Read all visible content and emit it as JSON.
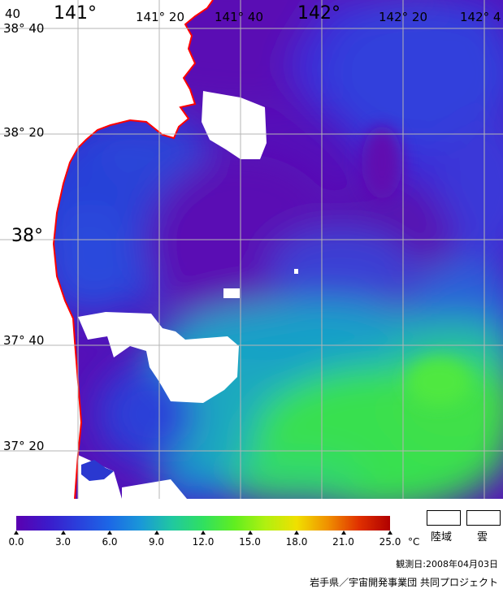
{
  "map": {
    "lon_labels": [
      {
        "text": "141°",
        "major": true
      },
      {
        "text": "141° 20",
        "major": false
      },
      {
        "text": "141° 40",
        "major": false
      },
      {
        "text": "142°",
        "major": true
      },
      {
        "text": "142° 20",
        "major": false
      },
      {
        "text": "142° 4",
        "major": false
      }
    ],
    "lat_labels": [
      {
        "text": "40",
        "major": false
      },
      {
        "text": "38° 40",
        "major": false
      },
      {
        "text": "38° 20",
        "major": false
      },
      {
        "text": "38°",
        "major": true
      },
      {
        "text": "37° 40",
        "major": false
      },
      {
        "text": "37° 20",
        "major": false
      }
    ],
    "coastline_color": "#ff0000",
    "grid_color": "#b4b4b4",
    "land_color": "#ffffff"
  },
  "legend": {
    "colorbar_stops": [
      "#5a00b0",
      "#3c1aca",
      "#2a40dc",
      "#1c68e6",
      "#1a98d8",
      "#20c8a0",
      "#30e060",
      "#60ee20",
      "#b0f010",
      "#f0e000",
      "#f09000",
      "#e03000",
      "#b00000"
    ],
    "tick_labels": [
      "0.0",
      "3.0",
      "6.0",
      "9.0",
      "12.0",
      "15.0",
      "18.0",
      "21.0",
      "25.0"
    ],
    "unit": "°C",
    "land_label": "陸域",
    "cloud_label": "雲"
  },
  "observation_date": "観測日:2008年04月03日",
  "credit": "岩手県／宇宙開発事業団 共同プロジェクト"
}
